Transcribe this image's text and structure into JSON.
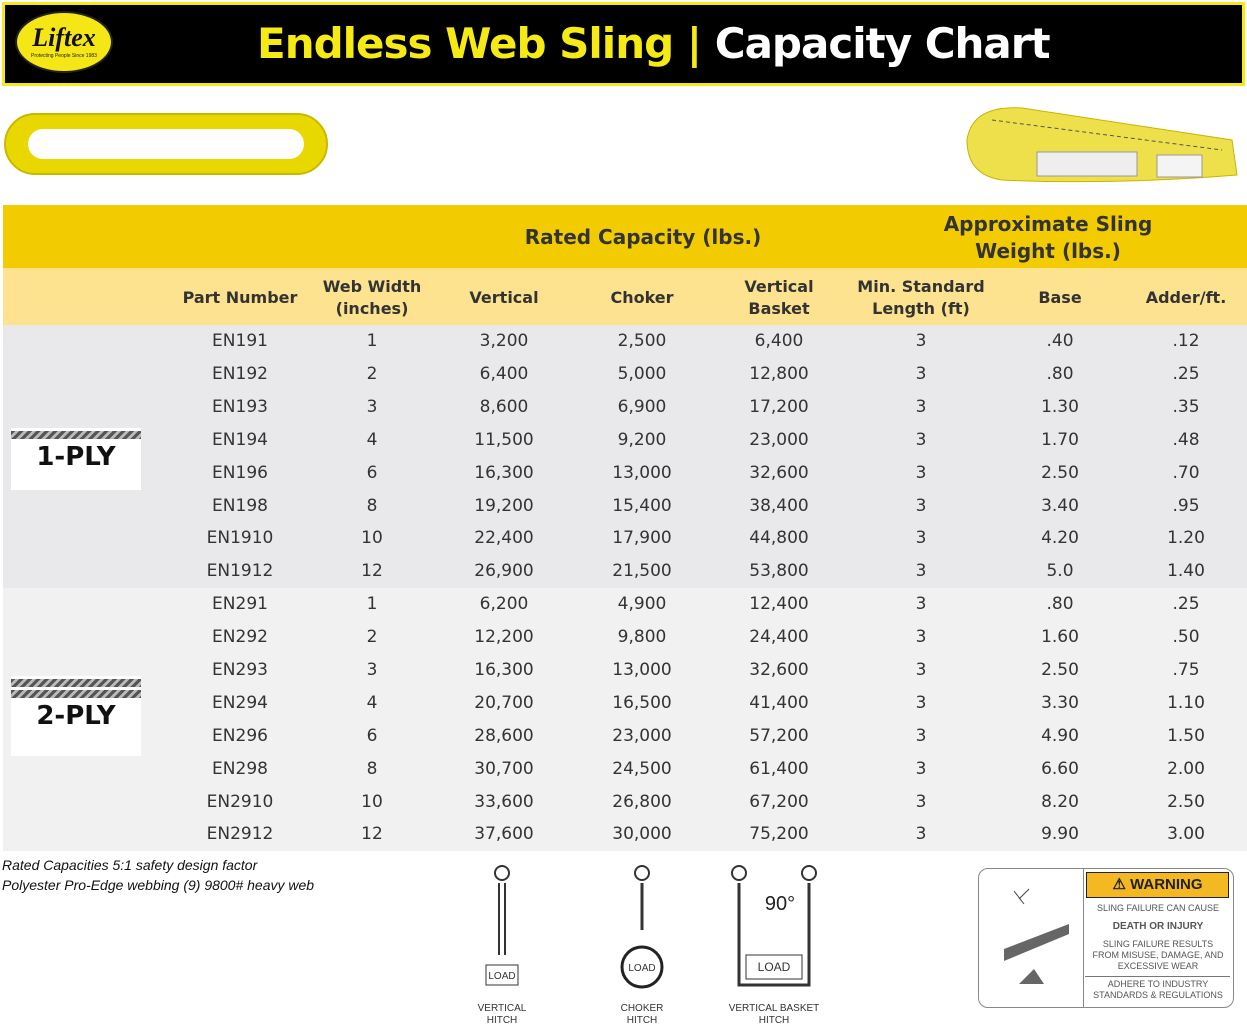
{
  "header": {
    "logo_text": "Liftex",
    "logo_tagline": "Protecting People Since 1983",
    "title_part1": "Endless Web Sling",
    "separator": "|",
    "title_part2": "Capacity Chart"
  },
  "table": {
    "group_headers": {
      "rated": "Rated Capacity (lbs.)",
      "weight": "Approximate Sling Weight (lbs.)"
    },
    "columns": [
      "Part Number",
      "Web Width (inches)",
      "Vertical",
      "Choker",
      "Vertical Basket",
      "Min. Standard Length (ft)",
      "Base",
      "Adder/ft."
    ],
    "groups": [
      {
        "label": "1-PLY",
        "rows": [
          [
            "EN191",
            "1",
            "3,200",
            "2,500",
            "6,400",
            "3",
            ".40",
            ".12"
          ],
          [
            "EN192",
            "2",
            "6,400",
            "5,000",
            "12,800",
            "3",
            ".80",
            ".25"
          ],
          [
            "EN193",
            "3",
            "8,600",
            "6,900",
            "17,200",
            "3",
            "1.30",
            ".35"
          ],
          [
            "EN194",
            "4",
            "11,500",
            "9,200",
            "23,000",
            "3",
            "1.70",
            ".48"
          ],
          [
            "EN196",
            "6",
            "16,300",
            "13,000",
            "32,600",
            "3",
            "2.50",
            ".70"
          ],
          [
            "EN198",
            "8",
            "19,200",
            "15,400",
            "38,400",
            "3",
            "3.40",
            ".95"
          ],
          [
            "EN1910",
            "10",
            "22,400",
            "17,900",
            "44,800",
            "3",
            "4.20",
            "1.20"
          ],
          [
            "EN1912",
            "12",
            "26,900",
            "21,500",
            "53,800",
            "3",
            "5.0",
            "1.40"
          ]
        ]
      },
      {
        "label": "2-PLY",
        "rows": [
          [
            "EN291",
            "1",
            "6,200",
            "4,900",
            "12,400",
            "3",
            ".80",
            ".25"
          ],
          [
            "EN292",
            "2",
            "12,200",
            "9,800",
            "24,400",
            "3",
            "1.60",
            ".50"
          ],
          [
            "EN293",
            "3",
            "16,300",
            "13,000",
            "32,600",
            "3",
            "2.50",
            ".75"
          ],
          [
            "EN294",
            "4",
            "20,700",
            "16,500",
            "41,400",
            "3",
            "3.30",
            "1.10"
          ],
          [
            "EN296",
            "6",
            "28,600",
            "23,000",
            "57,200",
            "3",
            "4.90",
            "1.50"
          ],
          [
            "EN298",
            "8",
            "30,700",
            "24,500",
            "61,400",
            "3",
            "6.60",
            "2.00"
          ],
          [
            "EN2910",
            "10",
            "33,600",
            "26,800",
            "67,200",
            "3",
            "8.20",
            "2.50"
          ],
          [
            "EN2912",
            "12",
            "37,600",
            "30,000",
            "75,200",
            "3",
            "9.90",
            "3.00"
          ]
        ]
      }
    ]
  },
  "notes": [
    "Rated Capacities 5:1 safety design factor",
    "Polyester Pro-Edge webbing (9) 9800# heavy web"
  ],
  "hitches": [
    {
      "label": "VERTICAL HITCH",
      "load": "LOAD"
    },
    {
      "label": "CHOKER HITCH",
      "load": "LOAD"
    },
    {
      "label": "VERTICAL BASKET HITCH",
      "load": "LOAD",
      "angle": "90°"
    }
  ],
  "warning": {
    "title": "WARNING",
    "lines": [
      "SLING FAILURE CAN CAUSE",
      "DEATH OR INJURY",
      "SLING FAILURE RESULTS FROM MISUSE, DAMAGE, AND EXCESSIVE WEAR",
      "ADHERE TO INDUSTRY STANDARDS & REGULATIONS"
    ]
  },
  "colors": {
    "brand_yellow": "#f5ea14",
    "band_yellow": "#f2cb00",
    "subheader": "#fde38f",
    "ply1_bg": "#e9e9eb",
    "ply2_bg": "#f1f1f2",
    "warning": "#f4b823"
  }
}
